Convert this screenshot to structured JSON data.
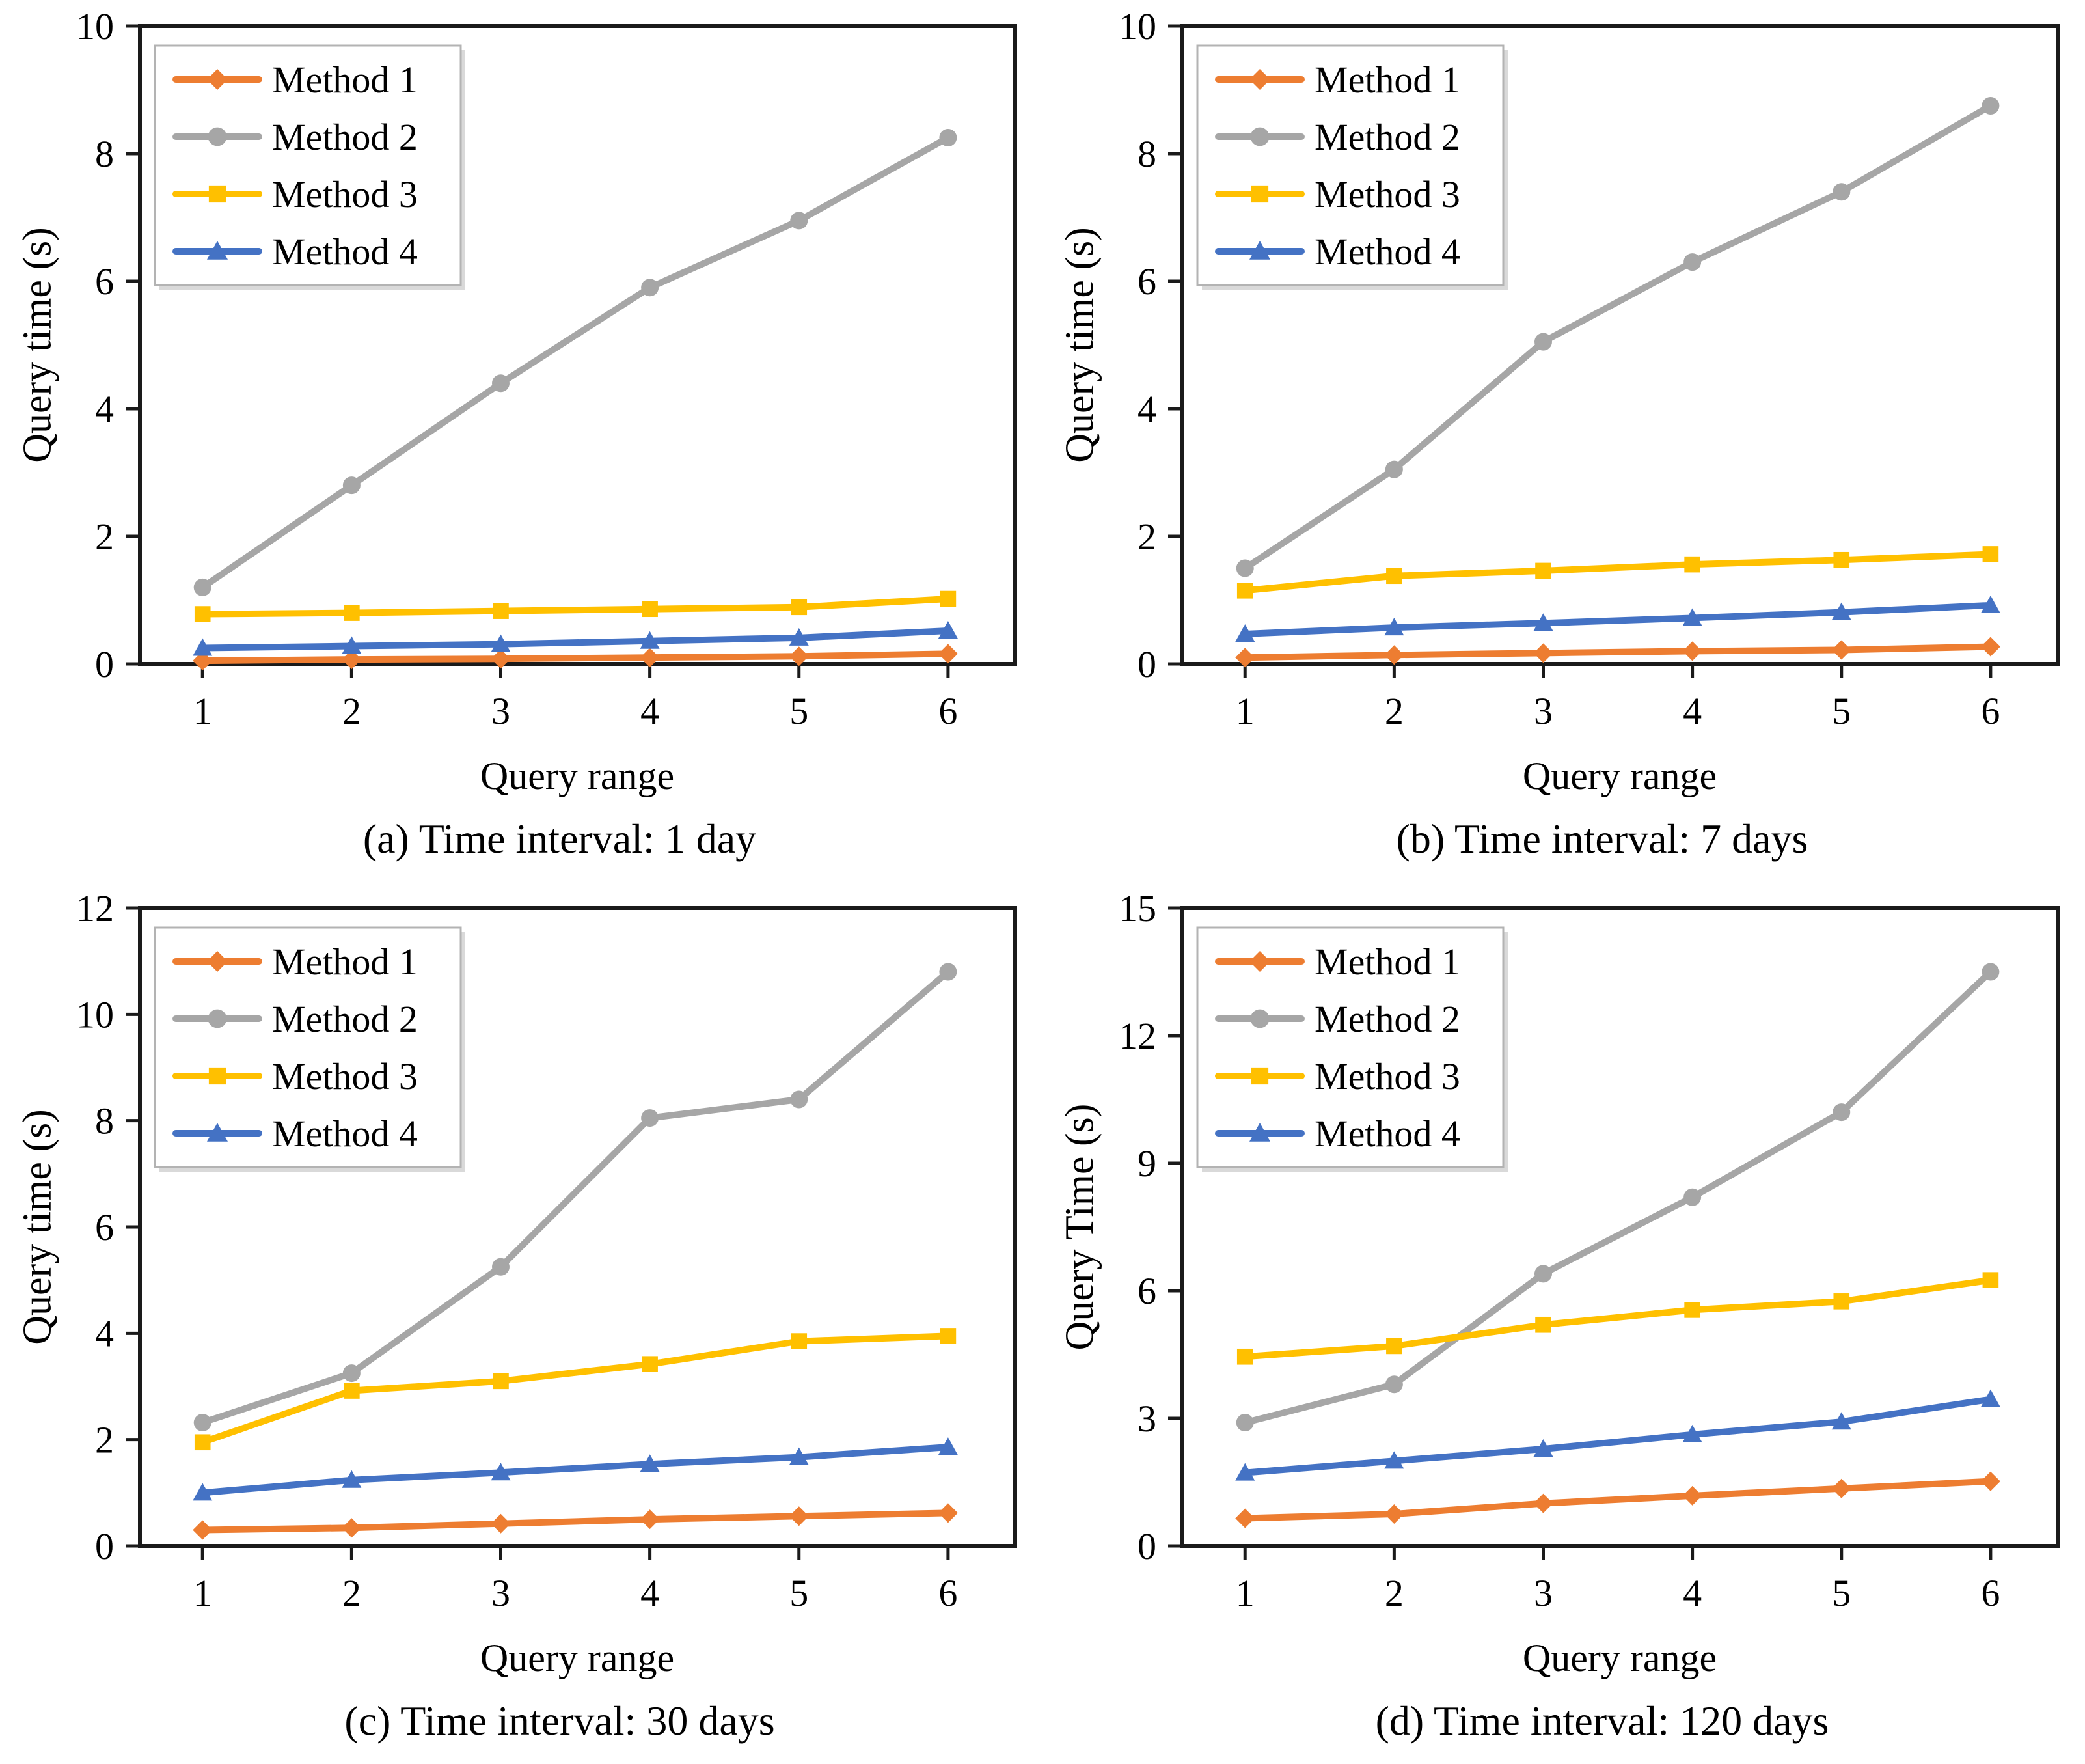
{
  "figure": {
    "background": "#ffffff",
    "axis_color": "#1a1a1a",
    "legend_border_color": "#b3b3b3",
    "legend_shadow_color": "#d9d9d9"
  },
  "chart_data": [
    {
      "id": "a",
      "type": "line",
      "title": "(a) Time interval: 1 day",
      "xlabel": "Query range",
      "ylabel": "Query time (s)",
      "x": [
        1,
        2,
        3,
        4,
        5,
        6
      ],
      "xlim": [
        0.58,
        6.45
      ],
      "ylim": [
        0,
        10
      ],
      "yticks": [
        0,
        2,
        4,
        6,
        8,
        10
      ],
      "grid": false,
      "legend_position": "top-left",
      "series": [
        {
          "name": "Method 1",
          "color": "#ED7D31",
          "marker": "diamond",
          "values": [
            0.05,
            0.07,
            0.08,
            0.1,
            0.12,
            0.16
          ]
        },
        {
          "name": "Method 2",
          "color": "#A6A6A6",
          "marker": "circle",
          "values": [
            1.2,
            2.8,
            4.4,
            5.9,
            6.95,
            8.25
          ]
        },
        {
          "name": "Method 3",
          "color": "#FFC000",
          "marker": "square",
          "values": [
            0.78,
            0.8,
            0.83,
            0.86,
            0.89,
            1.02
          ]
        },
        {
          "name": "Method 4",
          "color": "#4472C4",
          "marker": "triangle",
          "values": [
            0.25,
            0.28,
            0.31,
            0.36,
            0.41,
            0.52
          ]
        }
      ]
    },
    {
      "id": "b",
      "type": "line",
      "title": "(b) Time interval: 7 days",
      "xlabel": "Query range",
      "ylabel": "Query time (s)",
      "x": [
        1,
        2,
        3,
        4,
        5,
        6
      ],
      "xlim": [
        0.58,
        6.45
      ],
      "ylim": [
        0,
        10
      ],
      "yticks": [
        0,
        2,
        4,
        6,
        8,
        10
      ],
      "grid": false,
      "legend_position": "top-left",
      "series": [
        {
          "name": "Method 1",
          "color": "#ED7D31",
          "marker": "diamond",
          "values": [
            0.1,
            0.14,
            0.17,
            0.2,
            0.22,
            0.27
          ]
        },
        {
          "name": "Method 2",
          "color": "#A6A6A6",
          "marker": "circle",
          "values": [
            1.5,
            3.05,
            5.05,
            6.3,
            7.4,
            8.75
          ]
        },
        {
          "name": "Method 3",
          "color": "#FFC000",
          "marker": "square",
          "values": [
            1.15,
            1.38,
            1.46,
            1.56,
            1.63,
            1.72
          ]
        },
        {
          "name": "Method 4",
          "color": "#4472C4",
          "marker": "triangle",
          "values": [
            0.47,
            0.57,
            0.64,
            0.72,
            0.81,
            0.92
          ]
        }
      ]
    },
    {
      "id": "c",
      "type": "line",
      "title": "(c) Time interval: 30 days",
      "xlabel": "Query range",
      "ylabel": "Query time (s)",
      "x": [
        1,
        2,
        3,
        4,
        5,
        6
      ],
      "xlim": [
        0.58,
        6.45
      ],
      "ylim": [
        0,
        12
      ],
      "yticks": [
        0,
        2,
        4,
        6,
        8,
        10,
        12
      ],
      "grid": false,
      "legend_position": "top-left",
      "series": [
        {
          "name": "Method 1",
          "color": "#ED7D31",
          "marker": "diamond",
          "values": [
            0.3,
            0.34,
            0.42,
            0.5,
            0.56,
            0.62
          ]
        },
        {
          "name": "Method 2",
          "color": "#A6A6A6",
          "marker": "circle",
          "values": [
            2.32,
            3.25,
            5.25,
            8.05,
            8.4,
            10.8
          ]
        },
        {
          "name": "Method 3",
          "color": "#FFC000",
          "marker": "square",
          "values": [
            1.95,
            2.92,
            3.1,
            3.42,
            3.85,
            3.95
          ]
        },
        {
          "name": "Method 4",
          "color": "#4472C4",
          "marker": "triangle",
          "values": [
            1.0,
            1.24,
            1.38,
            1.54,
            1.67,
            1.86
          ]
        }
      ]
    },
    {
      "id": "d",
      "type": "line",
      "title": "(d) Time interval: 120 days",
      "xlabel": "Query range",
      "ylabel": "Query Time (s)",
      "x": [
        1,
        2,
        3,
        4,
        5,
        6
      ],
      "xlim": [
        0.58,
        6.45
      ],
      "ylim": [
        0,
        15
      ],
      "yticks": [
        0,
        3,
        6,
        9,
        12,
        15
      ],
      "grid": false,
      "legend_position": "top-left",
      "series": [
        {
          "name": "Method 1",
          "color": "#ED7D31",
          "marker": "diamond",
          "values": [
            0.65,
            0.75,
            1.0,
            1.18,
            1.35,
            1.52
          ]
        },
        {
          "name": "Method 2",
          "color": "#A6A6A6",
          "marker": "circle",
          "values": [
            2.9,
            3.8,
            6.4,
            8.2,
            10.2,
            13.5
          ]
        },
        {
          "name": "Method 3",
          "color": "#FFC000",
          "marker": "square",
          "values": [
            4.45,
            4.7,
            5.2,
            5.55,
            5.75,
            6.25
          ]
        },
        {
          "name": "Method 4",
          "color": "#4472C4",
          "marker": "triangle",
          "values": [
            1.72,
            2.0,
            2.28,
            2.62,
            2.92,
            3.45
          ]
        }
      ]
    }
  ]
}
